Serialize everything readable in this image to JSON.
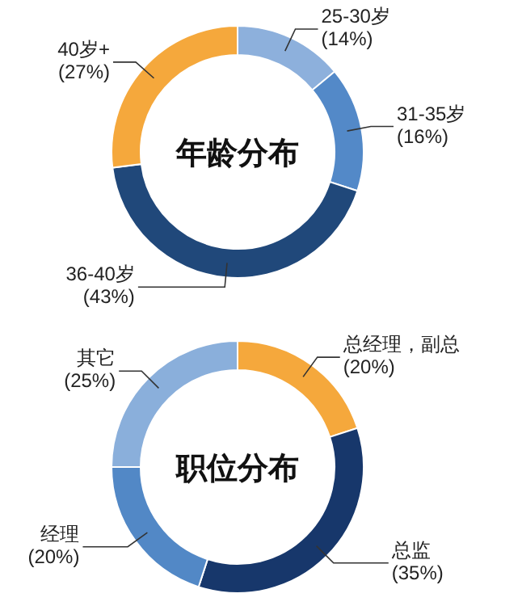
{
  "chart_data": [
    {
      "type": "donut",
      "title": "年龄分布",
      "categories": [
        "25-30岁",
        "31-35岁",
        "36-40岁",
        "40岁+"
      ],
      "values": [
        14,
        16,
        43,
        27
      ],
      "colors": [
        "#8db0dc",
        "#5389c8",
        "#20487a",
        "#f5a83c"
      ],
      "value_labels": [
        "(14%)",
        "(16%)",
        "(43%)",
        "(27%)"
      ]
    },
    {
      "type": "donut",
      "title": "职位分布",
      "categories": [
        "总经理，副总",
        "总监",
        "经理",
        "其它"
      ],
      "values": [
        20,
        35,
        20,
        25
      ],
      "colors": [
        "#f5a83c",
        "#17376b",
        "#5288c6",
        "#8aafdb"
      ],
      "value_labels": [
        "(20%)",
        "(35%)",
        "(20%)",
        "(25%)"
      ]
    }
  ]
}
